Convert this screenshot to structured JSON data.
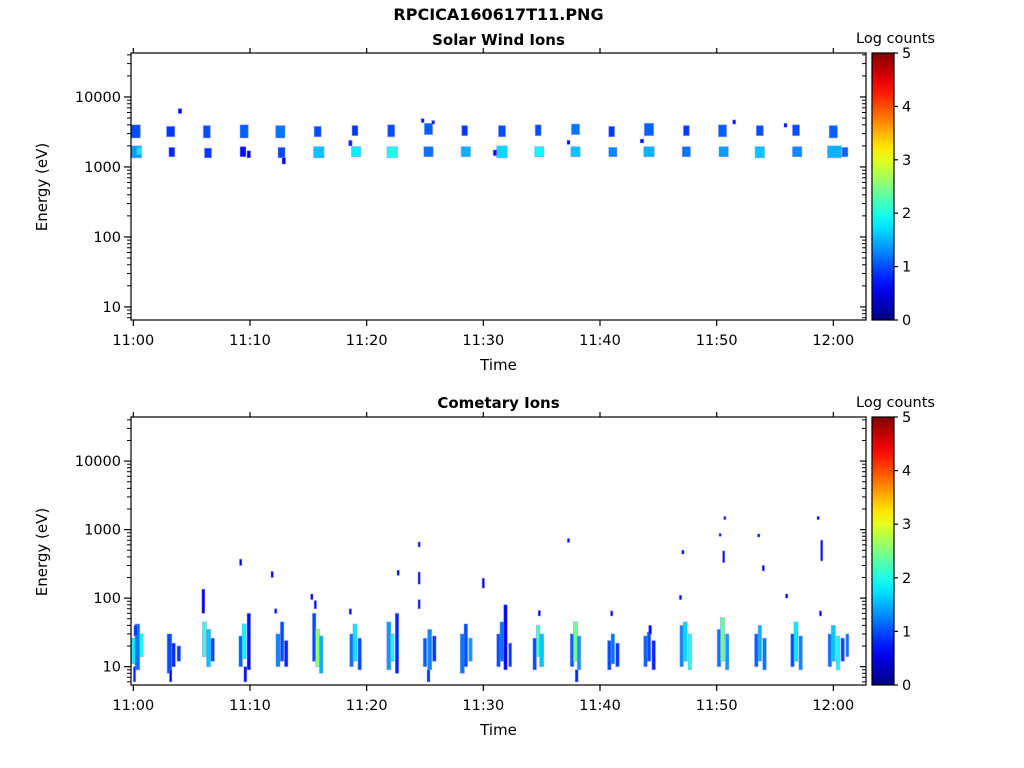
{
  "figure": {
    "title": "RPCICA160617T11.PNG",
    "background": "#ffffff",
    "frame_color": "#000000"
  },
  "chart_data": [
    {
      "type": "heatmap",
      "title": "Solar Wind Ions",
      "xlabel": "Time",
      "ylabel": "Energy (eV)",
      "colorbar_label": "Log counts",
      "colormap": "jet",
      "clim": [
        0,
        5
      ],
      "colorbar_ticks": [
        0,
        1,
        2,
        3,
        4,
        5
      ],
      "x_ticks": [
        {
          "t": 0,
          "label": "11:00"
        },
        {
          "t": 10,
          "label": "11:10"
        },
        {
          "t": 20,
          "label": "11:20"
        },
        {
          "t": 30,
          "label": "11:30"
        },
        {
          "t": 40,
          "label": "11:40"
        },
        {
          "t": 50,
          "label": "11:50"
        },
        {
          "t": 60,
          "label": "12:00"
        }
      ],
      "x_domain_min": [
        -0.2,
        62.8
      ],
      "y_domain_ev": [
        6.5,
        42500
      ],
      "y_ticks": [
        10,
        100,
        1000,
        10000
      ],
      "grid": false,
      "sweep_period_min": 3.15,
      "cells_format": [
        "t_min_after_1100",
        "width_min",
        "energy_lo_eV",
        "energy_hi_eV",
        "log_counts"
      ],
      "cells": [
        [
          0.2,
          0.8,
          2600,
          4000,
          1.0
        ],
        [
          0.2,
          1.0,
          1350,
          2000,
          1.4
        ],
        [
          0.5,
          0.4,
          1500,
          1900,
          1.8
        ],
        [
          3.2,
          0.7,
          2700,
          3800,
          0.9
        ],
        [
          3.3,
          0.5,
          1400,
          1900,
          0.8
        ],
        [
          4.0,
          0.3,
          5800,
          6800,
          0.6
        ],
        [
          6.3,
          0.6,
          2600,
          3900,
          1.0
        ],
        [
          6.4,
          0.6,
          1350,
          1850,
          0.9
        ],
        [
          9.5,
          0.7,
          2600,
          4000,
          1.1
        ],
        [
          9.4,
          0.5,
          1400,
          1950,
          0.7
        ],
        [
          9.9,
          0.3,
          1350,
          1700,
          0.5
        ],
        [
          12.6,
          0.8,
          2600,
          3900,
          1.2
        ],
        [
          12.7,
          0.6,
          1350,
          1900,
          1.0
        ],
        [
          12.9,
          0.3,
          1100,
          1350,
          0.6
        ],
        [
          15.8,
          0.6,
          2700,
          3800,
          1.0
        ],
        [
          15.9,
          0.9,
          1350,
          1950,
          1.6
        ],
        [
          19.0,
          0.5,
          2800,
          3900,
          0.9
        ],
        [
          19.1,
          0.8,
          1400,
          1950,
          1.8
        ],
        [
          18.6,
          0.3,
          2000,
          2400,
          0.8
        ],
        [
          22.1,
          0.6,
          2700,
          4000,
          1.0
        ],
        [
          22.2,
          0.9,
          1350,
          1950,
          2.0
        ],
        [
          25.3,
          0.7,
          2900,
          4200,
          1.1
        ],
        [
          25.3,
          0.8,
          1400,
          1950,
          1.2
        ],
        [
          24.8,
          0.25,
          4300,
          4900,
          0.6
        ],
        [
          25.7,
          0.25,
          4100,
          4600,
          0.6
        ],
        [
          28.4,
          0.5,
          2800,
          3900,
          0.9
        ],
        [
          28.5,
          0.8,
          1400,
          1950,
          1.5
        ],
        [
          31.6,
          0.6,
          2700,
          3900,
          1.0
        ],
        [
          31.6,
          0.9,
          1350,
          2000,
          1.7
        ],
        [
          31.0,
          0.3,
          1450,
          1750,
          0.7
        ],
        [
          34.7,
          0.5,
          2800,
          4000,
          1.0
        ],
        [
          34.8,
          0.8,
          1400,
          1950,
          1.9
        ],
        [
          37.9,
          0.7,
          2900,
          4100,
          1.2
        ],
        [
          37.9,
          0.8,
          1400,
          1950,
          1.6
        ],
        [
          37.3,
          0.25,
          2100,
          2400,
          0.6
        ],
        [
          41.0,
          0.5,
          2700,
          3800,
          0.9
        ],
        [
          41.1,
          0.7,
          1400,
          1900,
          1.3
        ],
        [
          44.2,
          0.8,
          2800,
          4200,
          1.1
        ],
        [
          44.2,
          0.9,
          1400,
          1950,
          1.5
        ],
        [
          43.6,
          0.3,
          2200,
          2500,
          0.7
        ],
        [
          47.4,
          0.5,
          2800,
          3900,
          0.9
        ],
        [
          47.4,
          0.7,
          1400,
          1950,
          1.2
        ],
        [
          50.5,
          0.7,
          2700,
          4000,
          1.1
        ],
        [
          50.6,
          0.8,
          1400,
          1950,
          1.4
        ],
        [
          51.5,
          0.25,
          4100,
          4700,
          0.5
        ],
        [
          53.7,
          0.6,
          2800,
          3900,
          1.0
        ],
        [
          53.7,
          0.8,
          1350,
          1950,
          1.6
        ],
        [
          55.9,
          0.25,
          3700,
          4200,
          0.5
        ],
        [
          56.8,
          0.6,
          2800,
          4000,
          1.0
        ],
        [
          56.9,
          0.8,
          1400,
          1950,
          1.3
        ],
        [
          60.0,
          0.7,
          2600,
          3900,
          1.1
        ],
        [
          60.1,
          1.2,
          1350,
          2000,
          1.5
        ],
        [
          61.0,
          0.5,
          1400,
          1900,
          1.1
        ]
      ]
    },
    {
      "type": "heatmap",
      "title": "Cometary Ions",
      "xlabel": "Time",
      "ylabel": "Energy (eV)",
      "colorbar_label": "Log counts",
      "colormap": "jet",
      "clim": [
        0,
        5
      ],
      "colorbar_ticks": [
        0,
        1,
        2,
        3,
        4,
        5
      ],
      "x_ticks": [
        {
          "t": 0,
          "label": "11:00"
        },
        {
          "t": 10,
          "label": "11:10"
        },
        {
          "t": 20,
          "label": "11:20"
        },
        {
          "t": 30,
          "label": "11:30"
        },
        {
          "t": 40,
          "label": "11:40"
        },
        {
          "t": 50,
          "label": "11:50"
        },
        {
          "t": 60,
          "label": "12:00"
        }
      ],
      "x_domain_min": [
        -0.2,
        62.8
      ],
      "y_domain_ev": [
        5.4,
        44000
      ],
      "y_ticks": [
        10,
        100,
        1000,
        10000
      ],
      "grid": false,
      "sweep_period_min": 3.15,
      "cells_format": [
        "t_min_after_1100",
        "width_min",
        "energy_lo_eV",
        "energy_hi_eV",
        "log_counts"
      ],
      "cells": [
        [
          0.0,
          0.4,
          11,
          26,
          1.8
        ],
        [
          0.35,
          0.4,
          9,
          42,
          1.2
        ],
        [
          0.7,
          0.3,
          14,
          30,
          2.0
        ],
        [
          0.2,
          0.3,
          28,
          40,
          0.9
        ],
        [
          0.1,
          0.2,
          6,
          10,
          0.8
        ],
        [
          3.1,
          0.4,
          8,
          30,
          1.0
        ],
        [
          3.45,
          0.3,
          10,
          22,
          0.8
        ],
        [
          3.9,
          0.3,
          12,
          20,
          0.9
        ],
        [
          3.2,
          0.2,
          6,
          9,
          0.5
        ],
        [
          6.1,
          0.35,
          14,
          45,
          2.2
        ],
        [
          6.45,
          0.35,
          10,
          35,
          1.6
        ],
        [
          6.0,
          0.25,
          60,
          135,
          0.5
        ],
        [
          6.8,
          0.3,
          12,
          26,
          1.0
        ],
        [
          9.2,
          0.3,
          10,
          28,
          1.1
        ],
        [
          9.5,
          0.35,
          13,
          42,
          1.9
        ],
        [
          9.9,
          0.3,
          9,
          60,
          0.7
        ],
        [
          9.2,
          0.2,
          300,
          370,
          0.5
        ],
        [
          9.6,
          0.25,
          6,
          10,
          0.7
        ],
        [
          12.4,
          0.35,
          10,
          30,
          1.3
        ],
        [
          12.75,
          0.3,
          12,
          45,
          1.0
        ],
        [
          13.1,
          0.3,
          10,
          24,
          0.8
        ],
        [
          11.9,
          0.2,
          200,
          245,
          0.5
        ],
        [
          12.2,
          0.2,
          60,
          70,
          0.5
        ],
        [
          15.5,
          0.3,
          12,
          60,
          1.0
        ],
        [
          15.8,
          0.35,
          10,
          35,
          2.6
        ],
        [
          16.1,
          0.3,
          8,
          28,
          1.5
        ],
        [
          15.6,
          0.2,
          70,
          92,
          0.6
        ],
        [
          15.3,
          0.2,
          95,
          115,
          0.5
        ],
        [
          18.7,
          0.3,
          10,
          30,
          1.2
        ],
        [
          19.0,
          0.35,
          12,
          42,
          1.8
        ],
        [
          19.4,
          0.3,
          9,
          26,
          1.0
        ],
        [
          18.6,
          0.2,
          58,
          70,
          0.6
        ],
        [
          21.9,
          0.35,
          9,
          45,
          1.4
        ],
        [
          22.2,
          0.3,
          12,
          30,
          2.0
        ],
        [
          22.6,
          0.3,
          8,
          60,
          0.8
        ],
        [
          22.7,
          0.2,
          215,
          255,
          0.5
        ],
        [
          25.0,
          0.3,
          10,
          26,
          1.1
        ],
        [
          24.5,
          0.18,
          560,
          660,
          0.6
        ],
        [
          24.5,
          0.18,
          160,
          240,
          0.6
        ],
        [
          24.5,
          0.18,
          70,
          95,
          0.6
        ],
        [
          25.4,
          0.35,
          9,
          35,
          1.3
        ],
        [
          25.8,
          0.3,
          12,
          28,
          0.9
        ],
        [
          25.3,
          0.25,
          6,
          9,
          0.9
        ],
        [
          28.2,
          0.35,
          8,
          30,
          1.2
        ],
        [
          28.5,
          0.3,
          10,
          42,
          1.0
        ],
        [
          28.9,
          0.3,
          12,
          26,
          1.4
        ],
        [
          30.0,
          0.2,
          140,
          195,
          0.5
        ],
        [
          31.3,
          0.3,
          10,
          30,
          1.0
        ],
        [
          31.6,
          0.35,
          12,
          45,
          1.2
        ],
        [
          31.9,
          0.3,
          9,
          80,
          0.6
        ],
        [
          32.3,
          0.25,
          10,
          22,
          0.9
        ],
        [
          34.4,
          0.3,
          9,
          26,
          1.0
        ],
        [
          34.7,
          0.3,
          14,
          40,
          2.2
        ],
        [
          35.0,
          0.35,
          10,
          30,
          1.6
        ],
        [
          34.8,
          0.2,
          55,
          66,
          0.6
        ],
        [
          37.6,
          0.3,
          10,
          30,
          1.1
        ],
        [
          37.9,
          0.35,
          12,
          45,
          2.4
        ],
        [
          38.2,
          0.3,
          9,
          28,
          1.4
        ],
        [
          37.3,
          0.2,
          650,
          740,
          0.6
        ],
        [
          38.0,
          0.25,
          6,
          9,
          0.8
        ],
        [
          40.8,
          0.3,
          9,
          24,
          1.0
        ],
        [
          41.1,
          0.3,
          11,
          30,
          1.2
        ],
        [
          41.5,
          0.3,
          10,
          22,
          0.9
        ],
        [
          41.0,
          0.2,
          55,
          65,
          0.5
        ],
        [
          43.9,
          0.3,
          10,
          28,
          1.1
        ],
        [
          44.2,
          0.3,
          12,
          32,
          1.0
        ],
        [
          44.6,
          0.3,
          9,
          24,
          0.8
        ],
        [
          44.3,
          0.25,
          30,
          40,
          0.6
        ],
        [
          47.0,
          0.3,
          10,
          40,
          1.3
        ],
        [
          47.3,
          0.35,
          12,
          45,
          1.7
        ],
        [
          47.7,
          0.3,
          9,
          30,
          2.0
        ],
        [
          47.1,
          0.2,
          440,
          500,
          0.5
        ],
        [
          46.9,
          0.2,
          95,
          110,
          0.5
        ],
        [
          50.2,
          0.3,
          10,
          35,
          1.2
        ],
        [
          50.5,
          0.35,
          12,
          52,
          2.4
        ],
        [
          50.9,
          0.3,
          9,
          30,
          1.4
        ],
        [
          50.6,
          0.18,
          330,
          490,
          0.5
        ],
        [
          50.7,
          0.18,
          1400,
          1560,
          0.6
        ],
        [
          50.3,
          0.18,
          800,
          880,
          0.5
        ],
        [
          53.4,
          0.3,
          10,
          30,
          1.1
        ],
        [
          53.7,
          0.3,
          12,
          40,
          1.5
        ],
        [
          54.1,
          0.3,
          9,
          26,
          1.2
        ],
        [
          53.6,
          0.2,
          780,
          865,
          0.6
        ],
        [
          54.0,
          0.2,
          250,
          300,
          0.5
        ],
        [
          56.0,
          0.2,
          100,
          115,
          0.5
        ],
        [
          56.5,
          0.3,
          10,
          30,
          1.0
        ],
        [
          56.8,
          0.35,
          12,
          45,
          1.8
        ],
        [
          57.2,
          0.3,
          9,
          28,
          1.3
        ],
        [
          58.7,
          0.2,
          1400,
          1560,
          0.6
        ],
        [
          59.0,
          0.18,
          350,
          700,
          0.5
        ],
        [
          58.9,
          0.2,
          55,
          65,
          0.5
        ],
        [
          59.7,
          0.3,
          10,
          30,
          1.2
        ],
        [
          60.0,
          0.35,
          12,
          40,
          1.6
        ],
        [
          60.4,
          0.3,
          9,
          28,
          1.9
        ],
        [
          60.8,
          0.3,
          12,
          26,
          1.0
        ],
        [
          61.2,
          0.25,
          14,
          30,
          1.2
        ]
      ]
    }
  ]
}
